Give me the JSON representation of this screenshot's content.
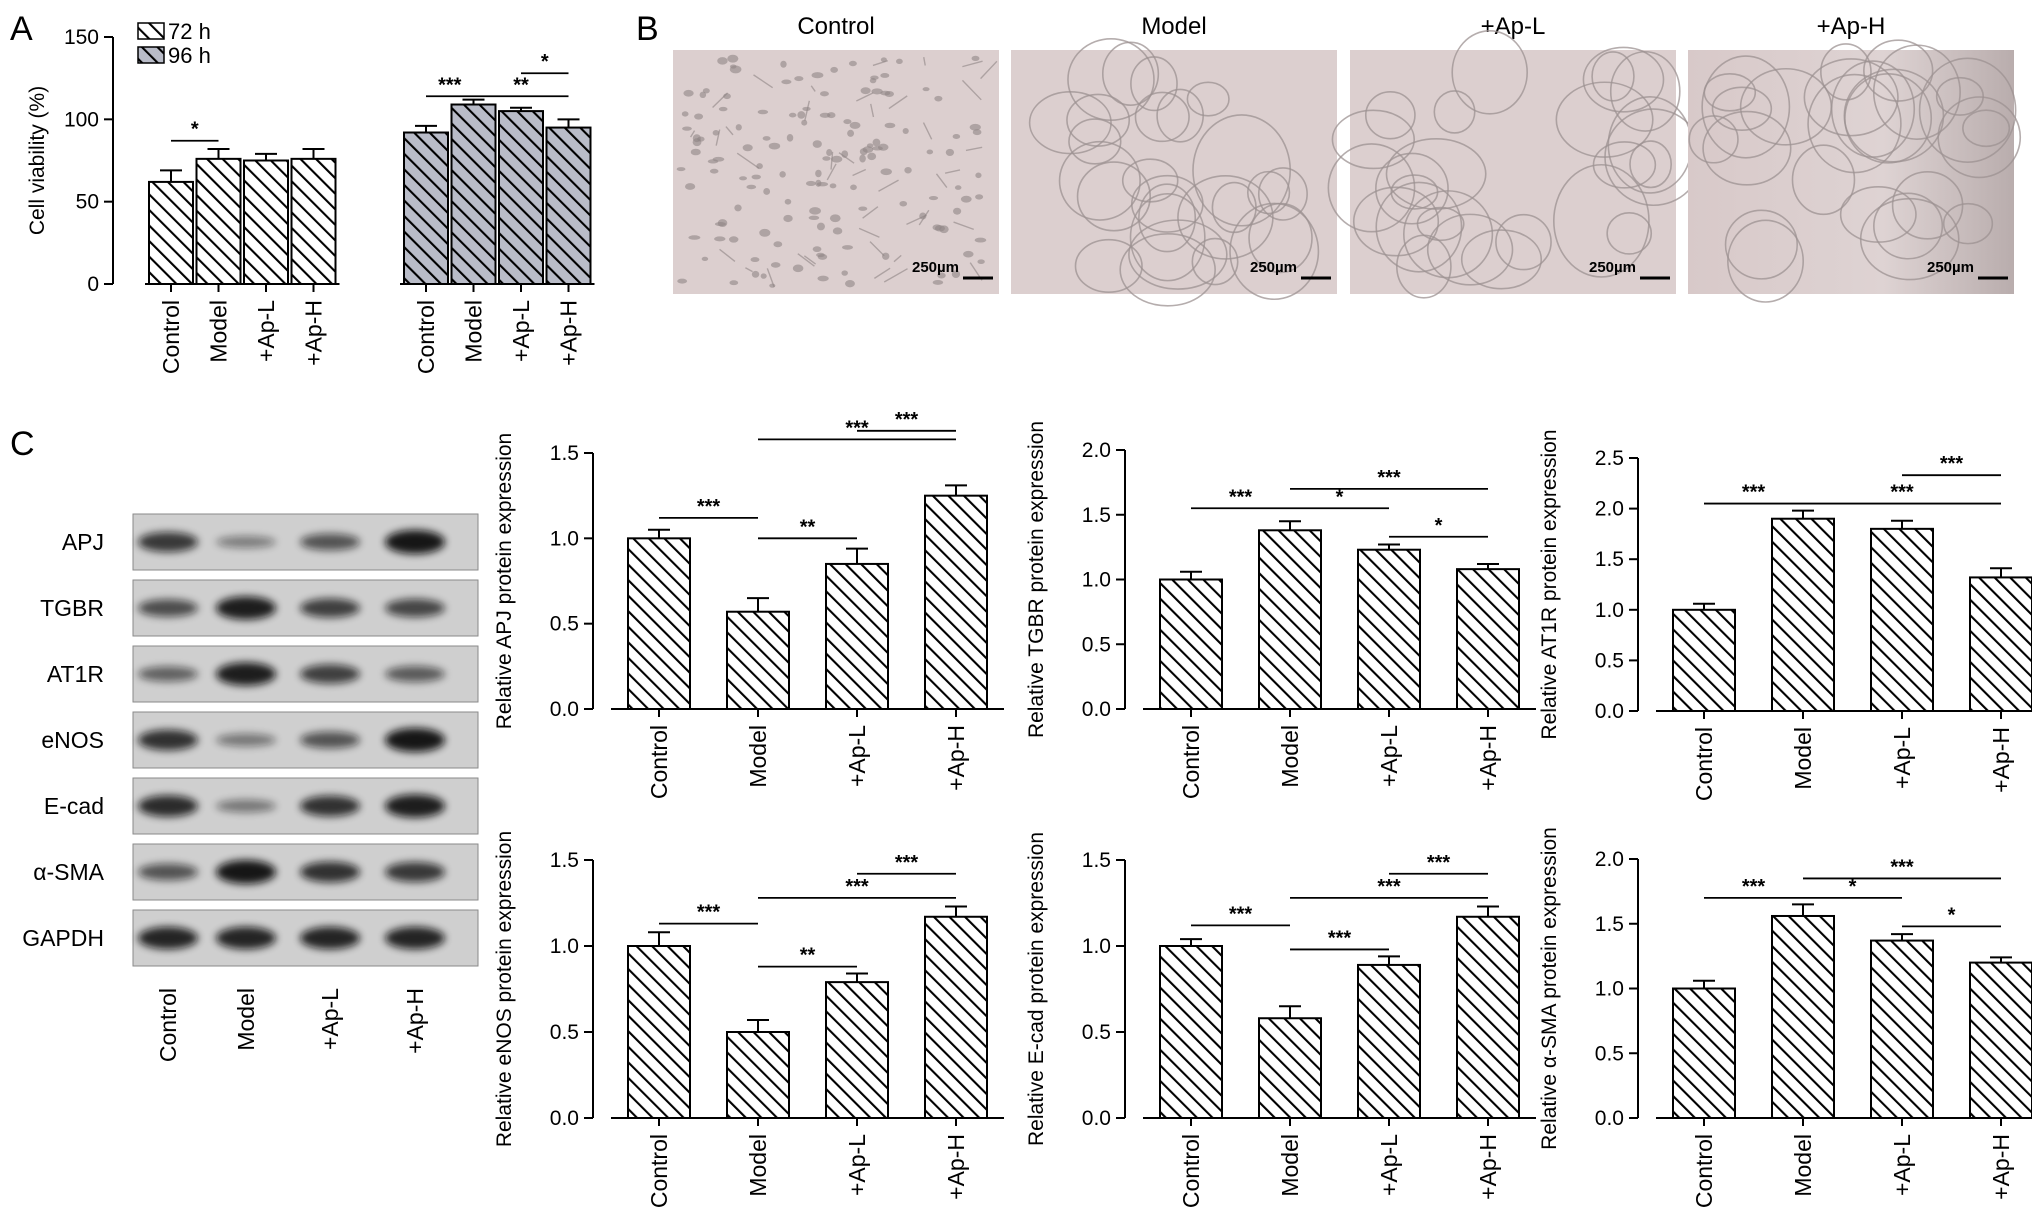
{
  "panels": {
    "a": "A",
    "b": "B",
    "c": "C"
  },
  "colors": {
    "bar_72h": "#ffffff",
    "bar_96h": "#b9bcc8",
    "hatch": "#000000",
    "micrograph_bg": "#dccfcf",
    "blot_bg": "#cfcfcf"
  },
  "micrographs": {
    "titles": [
      "Control",
      "Model",
      "+Ap-L",
      "+Ap-H"
    ],
    "scale_label": "250µm"
  },
  "western_blot": {
    "bands": [
      "APJ",
      "TGBR",
      "AT1R",
      "eNOS",
      "E-cad",
      "α-SMA",
      "GAPDH"
    ],
    "lanes": [
      "Control",
      "Model",
      "+Ap-L",
      "+Ap-H"
    ],
    "intensity": [
      [
        0.75,
        0.25,
        0.55,
        1.0
      ],
      [
        0.6,
        0.95,
        0.7,
        0.65
      ],
      [
        0.45,
        0.95,
        0.7,
        0.5
      ],
      [
        0.8,
        0.3,
        0.55,
        1.0
      ],
      [
        0.85,
        0.3,
        0.8,
        0.95
      ],
      [
        0.55,
        1.0,
        0.8,
        0.75
      ],
      [
        0.9,
        0.9,
        0.9,
        0.9
      ]
    ]
  },
  "chart_data": [
    {
      "type": "bar",
      "panel": "A",
      "categories": [
        "Control",
        "Model",
        "+Ap-L",
        "+Ap-H"
      ],
      "ylabel": "Cell viability (%)",
      "ylim": [
        0,
        150
      ],
      "yticks": [
        0,
        50,
        100,
        150
      ],
      "legend": "top-left",
      "series": [
        {
          "name": "72 h",
          "values": [
            62,
            76,
            75,
            76
          ],
          "errors": [
            7,
            6,
            4,
            6
          ]
        },
        {
          "name": "96 h",
          "values": [
            92,
            109,
            105,
            95
          ],
          "errors": [
            4,
            3,
            2,
            5
          ]
        }
      ],
      "annotations": [
        {
          "series": 0,
          "from": 0,
          "to": 1,
          "label": "*",
          "y": 87
        },
        {
          "series": 1,
          "from": 0,
          "to": 1,
          "label": "***",
          "y": 114
        },
        {
          "series": 1,
          "from": 1,
          "to": 3,
          "label": "**",
          "y": 114
        },
        {
          "series": 1,
          "from": 2,
          "to": 3,
          "label": "*",
          "y": 128
        }
      ]
    },
    {
      "type": "bar",
      "categories": [
        "Control",
        "Model",
        "+Ap-L",
        "+Ap-H"
      ],
      "ylabel": "Relative APJ protein expression",
      "ylim": [
        0,
        1.5
      ],
      "yticks": [
        0.0,
        0.5,
        1.0,
        1.5
      ],
      "values": [
        1.0,
        0.57,
        0.85,
        1.25
      ],
      "errors": [
        0.05,
        0.08,
        0.09,
        0.06
      ],
      "annotations": [
        {
          "from": 0,
          "to": 1,
          "label": "***",
          "y": 1.12
        },
        {
          "from": 1,
          "to": 2,
          "label": "**",
          "y": 1.0
        },
        {
          "from": 1,
          "to": 3,
          "label": "***",
          "y": 1.58
        },
        {
          "from": 2,
          "to": 3,
          "label": "***",
          "y": 1.63
        }
      ]
    },
    {
      "type": "bar",
      "categories": [
        "Control",
        "Model",
        "+Ap-L",
        "+Ap-H"
      ],
      "ylabel": "Relative TGBR protein expression",
      "ylim": [
        0,
        2.0
      ],
      "yticks": [
        0.0,
        0.5,
        1.0,
        1.5,
        2.0
      ],
      "values": [
        1.0,
        1.38,
        1.23,
        1.08
      ],
      "errors": [
        0.06,
        0.07,
        0.04,
        0.04
      ],
      "annotations": [
        {
          "from": 0,
          "to": 1,
          "label": "***",
          "y": 1.55
        },
        {
          "from": 1,
          "to": 2,
          "label": "*",
          "y": 1.55
        },
        {
          "from": 1,
          "to": 3,
          "label": "***",
          "y": 1.7
        },
        {
          "from": 2,
          "to": 3,
          "label": "*",
          "y": 1.33
        }
      ]
    },
    {
      "type": "bar",
      "categories": [
        "Control",
        "Model",
        "+Ap-L",
        "+Ap-H"
      ],
      "ylabel": "Relative AT1R protein expression",
      "ylim": [
        0,
        2.5
      ],
      "yticks": [
        0.0,
        0.5,
        1.0,
        1.5,
        2.0,
        2.5
      ],
      "values": [
        1.0,
        1.9,
        1.8,
        1.32
      ],
      "errors": [
        0.06,
        0.08,
        0.08,
        0.09
      ],
      "annotations": [
        {
          "from": 0,
          "to": 1,
          "label": "***",
          "y": 2.05
        },
        {
          "from": 1,
          "to": 3,
          "label": "***",
          "y": 2.05
        },
        {
          "from": 2,
          "to": 3,
          "label": "***",
          "y": 2.33
        }
      ]
    },
    {
      "type": "bar",
      "categories": [
        "Control",
        "Model",
        "+Ap-L",
        "+Ap-H"
      ],
      "ylabel": "Relative eNOS protein expression",
      "ylim": [
        0,
        1.5
      ],
      "yticks": [
        0.0,
        0.5,
        1.0,
        1.5
      ],
      "values": [
        1.0,
        0.5,
        0.79,
        1.17
      ],
      "errors": [
        0.08,
        0.07,
        0.05,
        0.06
      ],
      "annotations": [
        {
          "from": 0,
          "to": 1,
          "label": "***",
          "y": 1.13
        },
        {
          "from": 1,
          "to": 2,
          "label": "**",
          "y": 0.88
        },
        {
          "from": 1,
          "to": 3,
          "label": "***",
          "y": 1.28
        },
        {
          "from": 2,
          "to": 3,
          "label": "***",
          "y": 1.42
        }
      ]
    },
    {
      "type": "bar",
      "categories": [
        "Control",
        "Model",
        "+Ap-L",
        "+Ap-H"
      ],
      "ylabel": "Relative E-cad protein expression",
      "ylim": [
        0,
        1.5
      ],
      "yticks": [
        0.0,
        0.5,
        1.0,
        1.5
      ],
      "values": [
        1.0,
        0.58,
        0.89,
        1.17
      ],
      "errors": [
        0.04,
        0.07,
        0.05,
        0.06
      ],
      "annotations": [
        {
          "from": 0,
          "to": 1,
          "label": "***",
          "y": 1.12
        },
        {
          "from": 1,
          "to": 2,
          "label": "***",
          "y": 0.98
        },
        {
          "from": 1,
          "to": 3,
          "label": "***",
          "y": 1.28
        },
        {
          "from": 2,
          "to": 3,
          "label": "***",
          "y": 1.42
        }
      ]
    },
    {
      "type": "bar",
      "categories": [
        "Control",
        "Model",
        "+Ap-L",
        "+Ap-H"
      ],
      "ylabel": "Relative α-SMA protein expression",
      "ylim": [
        0,
        2.0
      ],
      "yticks": [
        0.0,
        0.5,
        1.0,
        1.5,
        2.0
      ],
      "values": [
        1.0,
        1.56,
        1.37,
        1.2
      ],
      "errors": [
        0.06,
        0.09,
        0.05,
        0.04
      ],
      "annotations": [
        {
          "from": 0,
          "to": 1,
          "label": "***",
          "y": 1.7
        },
        {
          "from": 1,
          "to": 2,
          "label": "*",
          "y": 1.7
        },
        {
          "from": 1,
          "to": 3,
          "label": "***",
          "y": 1.85
        },
        {
          "from": 2,
          "to": 3,
          "label": "*",
          "y": 1.48
        }
      ]
    }
  ]
}
